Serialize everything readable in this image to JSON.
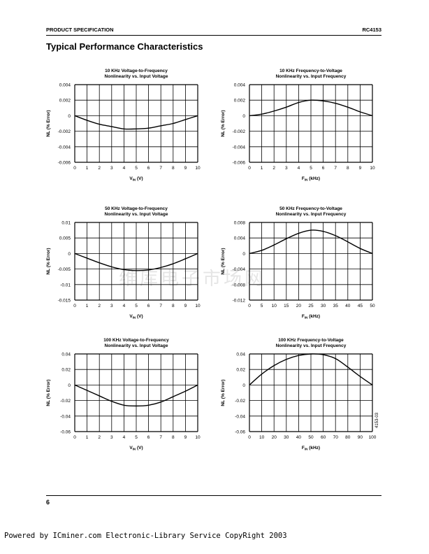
{
  "header": {
    "left": "PRODUCT SPECIFICATION",
    "right": "RC4153"
  },
  "section_title": "Typical Performance Characteristics",
  "footer": {
    "page_number": "6",
    "powered_by": "Powered by ICminer.com Electronic-Library Service CopyRight 2003"
  },
  "watermark": "维库电子市场网",
  "figure_id": "4153-03",
  "chart_data": [
    {
      "type": "line",
      "title": [
        "10 KHz Voltage-to-Frequency",
        "Nonlinearity vs. Input Voltage"
      ],
      "xlabel": {
        "main": "V",
        "sub": "IN",
        "rest": " (V)"
      },
      "ylabel": "NL (% Error)",
      "xlim": [
        0,
        10
      ],
      "ylim": [
        -0.006,
        0.004
      ],
      "xticks": [
        "0",
        "1",
        "2",
        "3",
        "4",
        "5",
        "6",
        "7",
        "8",
        "9",
        "10"
      ],
      "yticks": [
        "0.004",
        "0.002",
        "0",
        "-0.002",
        "-0.004",
        "-0.006"
      ],
      "x": [
        0,
        1,
        2,
        3,
        4,
        5,
        6,
        7,
        8,
        9,
        10
      ],
      "y": [
        0,
        -0.0006,
        -0.0011,
        -0.0014,
        -0.0017,
        -0.0017,
        -0.0016,
        -0.0013,
        -0.001,
        -0.0005,
        0
      ]
    },
    {
      "type": "line",
      "title": [
        "10 KHz Frequency-to-Voltage",
        "Nonlinearity vs. Input Frequency"
      ],
      "xlabel": {
        "main": "F",
        "sub": "IN",
        "rest": " (kHz)"
      },
      "ylabel": "NL (% Error)",
      "xlim": [
        0,
        10
      ],
      "ylim": [
        -0.006,
        0.004
      ],
      "xticks": [
        "0",
        "1",
        "2",
        "3",
        "4",
        "5",
        "6",
        "7",
        "8",
        "9",
        "10"
      ],
      "yticks": [
        "0.004",
        "0.002",
        "0",
        "-0.002",
        "-0.004",
        "-0.006"
      ],
      "x": [
        0,
        1,
        2,
        3,
        4,
        5,
        6,
        7,
        8,
        9,
        10
      ],
      "y": [
        0,
        0.0002,
        0.0006,
        0.0011,
        0.0017,
        0.002,
        0.0019,
        0.0016,
        0.0011,
        0.0005,
        0
      ]
    },
    {
      "type": "line",
      "title": [
        "50 KHz Voltage-to-Frequency",
        "Nonlinearity vs. Input Voltage"
      ],
      "xlabel": {
        "main": "V",
        "sub": "IN",
        "rest": " (V)"
      },
      "ylabel": "NL (% Error)",
      "xlim": [
        0,
        10
      ],
      "ylim": [
        -0.015,
        0.01
      ],
      "xticks": [
        "0",
        "1",
        "2",
        "3",
        "4",
        "5",
        "6",
        "7",
        "8",
        "9",
        "10"
      ],
      "yticks": [
        "0.01",
        "0.005",
        "0",
        "-0.005",
        "-0.01",
        "-0.015"
      ],
      "x": [
        0,
        1,
        2,
        3,
        4,
        5,
        6,
        7,
        8,
        9,
        10
      ],
      "y": [
        0,
        -0.0015,
        -0.003,
        -0.0043,
        -0.0052,
        -0.0055,
        -0.0053,
        -0.0045,
        -0.0033,
        -0.0017,
        0
      ]
    },
    {
      "type": "line",
      "title": [
        "50 KHz Frequency-to-Voltage",
        "Nonlinearity vs. Input Frequency"
      ],
      "xlabel": {
        "main": "F",
        "sub": "IN",
        "rest": " (kHz)"
      },
      "ylabel": "NL (% Error)",
      "xlim": [
        0,
        50
      ],
      "ylim": [
        -0.012,
        0.008
      ],
      "xticks": [
        "0",
        "5",
        "10",
        "15",
        "20",
        "25",
        "30",
        "35",
        "40",
        "45",
        "50"
      ],
      "yticks": [
        "0.008",
        "0.004",
        "0",
        "-0.004",
        "-0.008",
        "-0.012"
      ],
      "x": [
        0,
        5,
        10,
        15,
        20,
        25,
        30,
        35,
        40,
        45,
        50
      ],
      "y": [
        0,
        0.0008,
        0.0022,
        0.0038,
        0.0052,
        0.006,
        0.0057,
        0.0046,
        0.003,
        0.0013,
        0
      ]
    },
    {
      "type": "line",
      "title": [
        "100 KHz Voltage-to-Frequency",
        "Nonlinearity vs. Input Voltage"
      ],
      "xlabel": {
        "main": "V",
        "sub": "IN",
        "rest": " (V)"
      },
      "ylabel": "NL (% Error)",
      "xlim": [
        0,
        10
      ],
      "ylim": [
        -0.06,
        0.04
      ],
      "xticks": [
        "0",
        "1",
        "2",
        "3",
        "4",
        "5",
        "6",
        "7",
        "8",
        "9",
        "10"
      ],
      "yticks": [
        "0.04",
        "0.02",
        "0",
        "-0.02",
        "-0.04",
        "-0.06"
      ],
      "x": [
        0,
        1,
        2,
        3,
        4,
        5,
        6,
        7,
        8,
        9,
        10
      ],
      "y": [
        0,
        -0.007,
        -0.014,
        -0.021,
        -0.026,
        -0.027,
        -0.026,
        -0.022,
        -0.015,
        -0.008,
        0
      ]
    },
    {
      "type": "line",
      "title": [
        "100 KHz Frequency-to-Voltage",
        "Nonlinearity vs. Input Frequency"
      ],
      "xlabel": {
        "main": "F",
        "sub": "IN",
        "rest": " (kHz)"
      },
      "ylabel": "NL (% Error)",
      "xlim": [
        0,
        100
      ],
      "ylim": [
        -0.06,
        0.04
      ],
      "xticks": [
        "0",
        "10",
        "20",
        "30",
        "40",
        "50",
        "60",
        "70",
        "80",
        "90",
        "100"
      ],
      "yticks": [
        "0.04",
        "0.02",
        "0",
        "-0.02",
        "-0.04",
        "-0.06"
      ],
      "x": [
        0,
        10,
        20,
        30,
        40,
        50,
        60,
        70,
        80,
        90,
        100
      ],
      "y": [
        0,
        0.014,
        0.025,
        0.033,
        0.038,
        0.04,
        0.039,
        0.034,
        0.023,
        0.011,
        0
      ]
    }
  ]
}
